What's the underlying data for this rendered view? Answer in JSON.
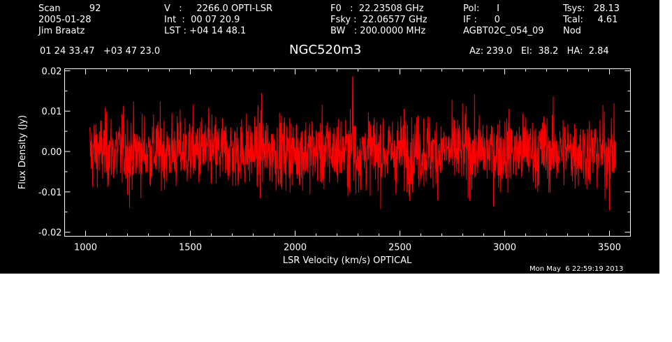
{
  "header": {
    "col1": [
      "Scan          92",
      "2005-01-28",
      "Jim Braatz"
    ],
    "col2": [
      "V   :     2266.0 OPTI-LSR",
      "Int  :  00 07 20.9",
      "LST : +04 14 48.1"
    ],
    "col3": [
      "F0   :  22.23508 GHz",
      "Fsky :  22.06577 GHz",
      "BW   : 200.0000 MHz"
    ],
    "col4": [
      "Pol:      I",
      "IF :      0",
      "AGBT02C_054_09"
    ],
    "col5": [
      "Tsys:   28.13",
      "Tcal:     4.61",
      "Nod"
    ],
    "coords": "01 24 33.47   +03 47 23.0",
    "source": "NGC520m3",
    "azel": "Az: 239.0   El:  38.2   HA:  2.84",
    "timestamp": "Mon May  6 22:59:19 2013"
  },
  "colors": {
    "background": "#000000",
    "axes": "#ffffff",
    "series": "#ff0000"
  },
  "chart_data": {
    "type": "line",
    "title": "NGC520m3",
    "xlabel": "LSR Velocity (km/s) OPTICAL",
    "ylabel": "Flux Density (Jy)",
    "xlim": [
      900,
      3600
    ],
    "ylim": [
      -0.021,
      0.0205
    ],
    "xticks": [
      1000,
      1500,
      2000,
      2500,
      3000,
      3500
    ],
    "xtick_labels": [
      "1000",
      "1500",
      "2000",
      "2500",
      "3000",
      "3500"
    ],
    "yticks": [
      0.02,
      0.01,
      0.0,
      -0.01,
      -0.02
    ],
    "ytick_labels": [
      "0.02",
      "0.01",
      "0.00",
      "-0.01",
      "-0.02"
    ],
    "series": [
      {
        "color": "#ff0000",
        "x_start": 1020,
        "x_end": 3530,
        "points": 1800,
        "mean": 0.0,
        "rms": 0.0045,
        "peaks": [
          {
            "x": 2275,
            "y": 0.0185
          },
          {
            "x": 2290,
            "y": -0.0105
          },
          {
            "x": 3500,
            "y": -0.0145
          },
          {
            "x": 1210,
            "y": -0.014
          },
          {
            "x": 1840,
            "y": 0.0145
          }
        ]
      }
    ],
    "grid": false
  }
}
